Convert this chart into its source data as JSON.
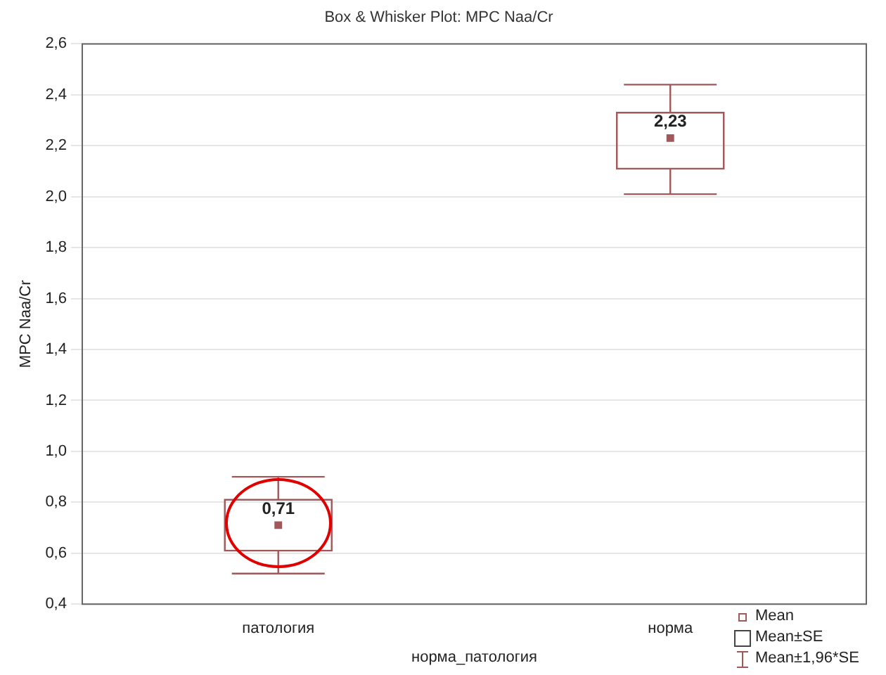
{
  "chart_data": {
    "type": "box",
    "title": "Box & Whisker Plot: MPC Naa/Cr",
    "xlabel": "норма_патология",
    "ylabel": "MPC Naa/Cr",
    "categories": [
      "патология",
      "норма"
    ],
    "series": [
      {
        "color": "#a0585a",
        "value_labels": [
          "0,71",
          "2,23"
        ],
        "boxes": [
          {
            "low": 0.52,
            "q1": 0.61,
            "median": 0.71,
            "q3": 0.81,
            "high": 0.9
          },
          {
            "low": 2.01,
            "q1": 2.11,
            "median": 2.23,
            "q3": 2.33,
            "high": 2.44
          }
        ]
      }
    ],
    "ylim": [
      0.4,
      2.6
    ],
    "yticks": [
      {
        "value": 0.4,
        "label": "0,4"
      },
      {
        "value": 0.6,
        "label": "0,6"
      },
      {
        "value": 0.8,
        "label": "0,8"
      },
      {
        "value": 1.0,
        "label": "1,0"
      },
      {
        "value": 1.2,
        "label": "1,2"
      },
      {
        "value": 1.4,
        "label": "1,4"
      },
      {
        "value": 1.6,
        "label": "1,6"
      },
      {
        "value": 1.8,
        "label": "1,8"
      },
      {
        "value": 2.0,
        "label": "2,0"
      },
      {
        "value": 2.2,
        "label": "2,2"
      },
      {
        "value": 2.4,
        "label": "2,4"
      },
      {
        "value": 2.6,
        "label": "2,6"
      }
    ],
    "grid": "y",
    "marker": "square",
    "annotations": [
      "Mean",
      "Mean±SE",
      "Mean±1,96*SE"
    ]
  }
}
